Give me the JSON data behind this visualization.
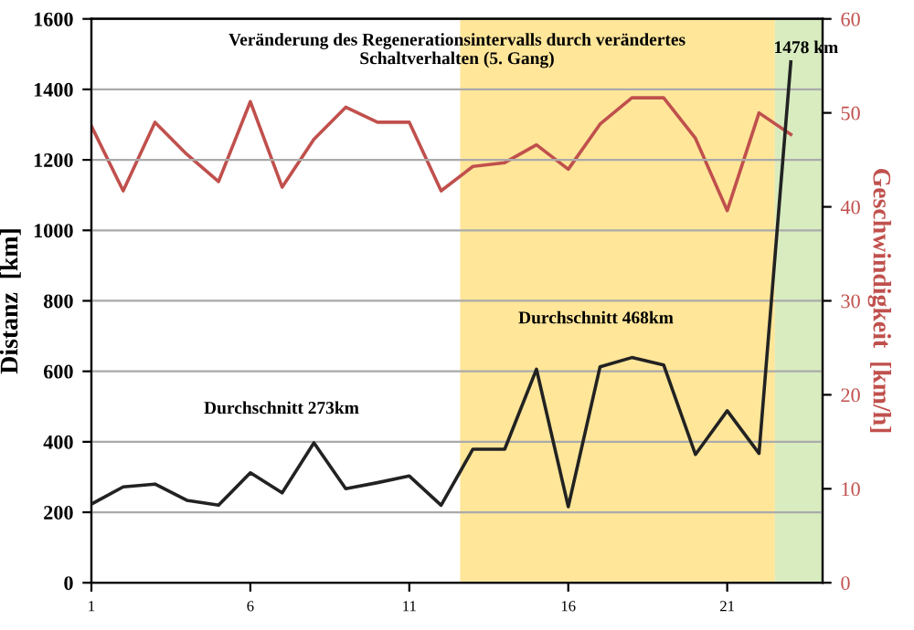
{
  "chart_data": {
    "type": "line",
    "title": "Veränderung des Regenerationsintervalls durch verändertes\nSchaltverhalten (5. Gang)",
    "ylabel": "Distanz  [km]",
    "y2label": "Geschwindigkeit  [km/h]",
    "x": [
      1,
      2,
      3,
      4,
      5,
      6,
      7,
      8,
      9,
      10,
      11,
      12,
      13,
      14,
      15,
      16,
      17,
      18,
      19,
      20,
      21,
      22,
      23
    ],
    "series": [
      {
        "color": "#222222",
        "values": [
          223,
          272,
          280,
          234,
          220,
          312,
          255,
          397,
          267,
          284,
          303,
          220,
          379,
          379,
          606,
          216,
          613,
          639,
          618,
          364,
          488,
          367,
          1478
        ]
      },
      {
        "color": "#c0504d",
        "axis": "y2",
        "values": [
          48.6,
          41.7,
          49.0,
          45.6,
          42.7,
          51.2,
          42.1,
          47.2,
          50.6,
          49.0,
          49.0,
          41.7,
          44.3,
          44.7,
          46.6,
          44.0,
          48.8,
          51.6,
          51.6,
          47.3,
          39.6,
          50.0,
          47.7
        ]
      }
    ],
    "xlim": [
      1,
      24
    ],
    "xticks": [
      1,
      6,
      11,
      16,
      21
    ],
    "ylim": [
      0,
      1600
    ],
    "yticks": [
      0,
      200,
      400,
      600,
      800,
      1000,
      1200,
      1400,
      1600
    ],
    "y2lim": [
      0,
      60
    ],
    "y2ticks": [
      0,
      10,
      20,
      30,
      40,
      50,
      60
    ],
    "bands": [
      {
        "axis": "x",
        "from": 12.6,
        "to": 22.5,
        "color": "#ffe699"
      },
      {
        "axis": "x",
        "from": 22.5,
        "to": 24,
        "color": "#d8ecc0"
      }
    ],
    "annotations": [
      "Durchschnitt 273km",
      "Durchschnitt 468km",
      {
        "text": "1478 km",
        "x": 23,
        "y": 1478
      }
    ],
    "grid": "y",
    "legend": false,
    "marker": "none",
    "line_style": "solid"
  }
}
